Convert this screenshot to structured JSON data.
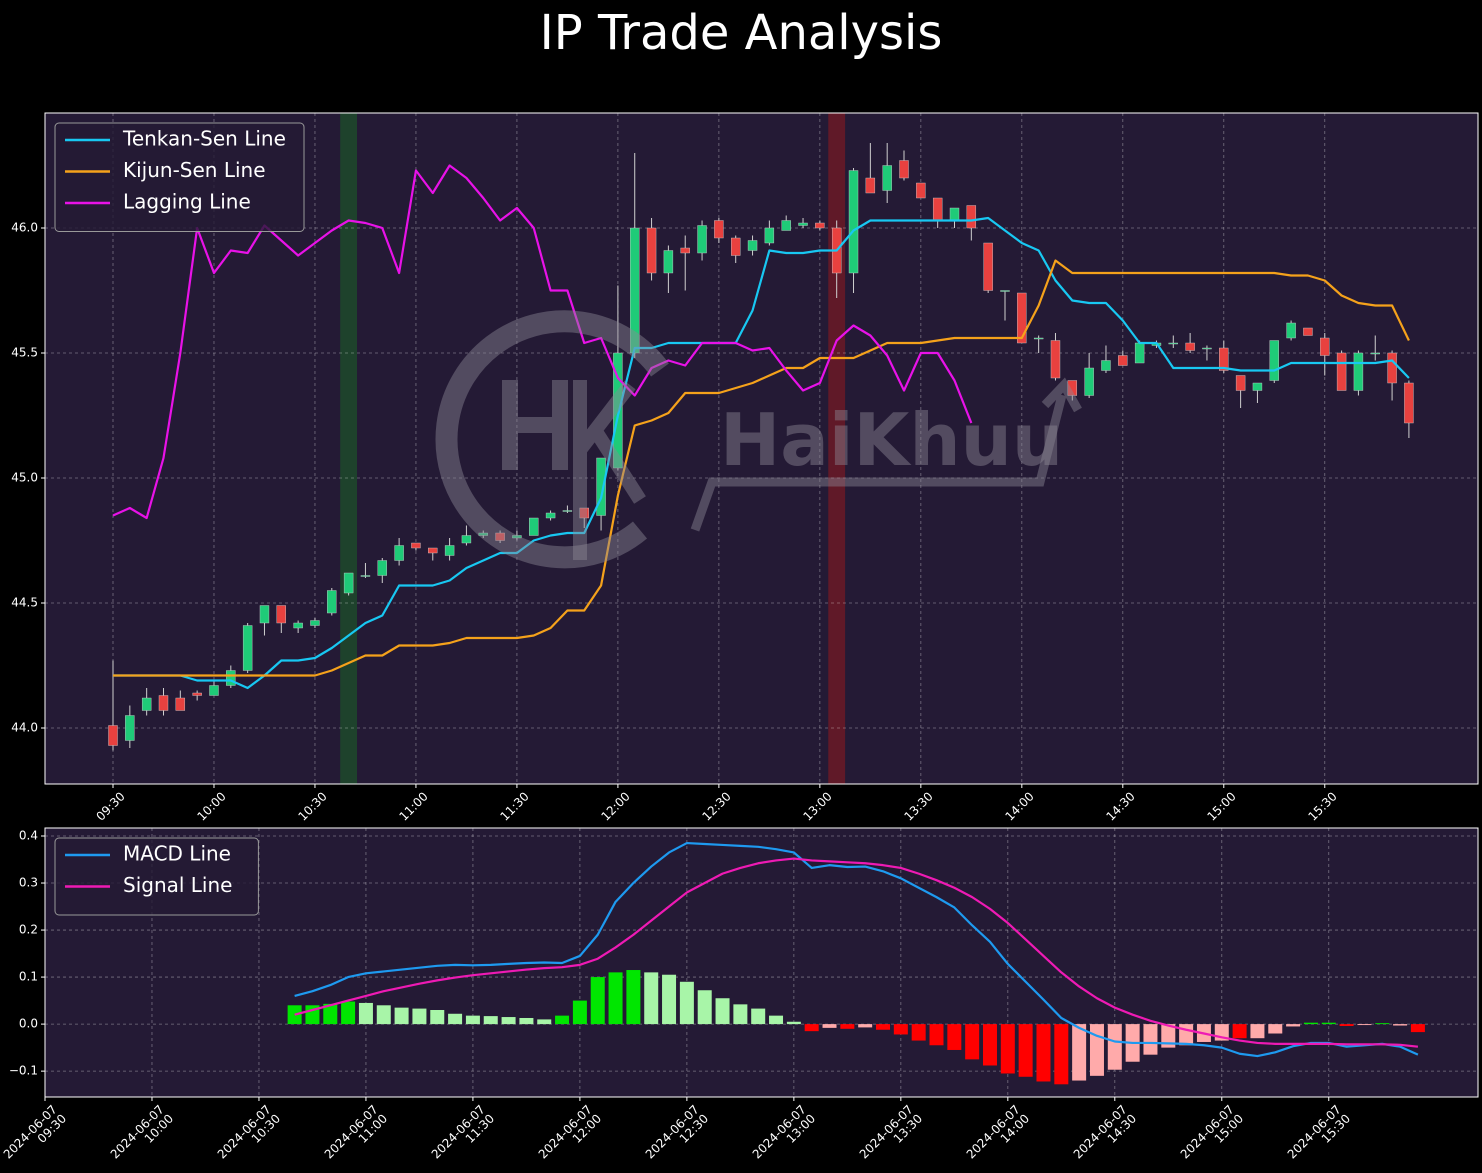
{
  "title": "IP Trade Analysis",
  "watermark": "HaiKhuu",
  "chart_data": [
    {
      "type": "candlestick",
      "categories": [
        "09:30",
        null,
        null,
        null,
        null,
        null,
        "10:00",
        null,
        null,
        null,
        null,
        null,
        "10:30",
        null,
        null,
        null,
        null,
        null,
        "11:00",
        null,
        null,
        null,
        null,
        null,
        "11:30",
        null,
        null,
        null,
        null,
        null,
        "12:00",
        null,
        null,
        null,
        null,
        null,
        "12:30",
        null,
        null,
        null,
        null,
        null,
        "13:00",
        null,
        null,
        null,
        null,
        null,
        "13:30",
        null,
        null,
        null,
        null,
        null,
        "14:00",
        null,
        null,
        null,
        null,
        null,
        "14:30",
        null,
        null,
        null,
        null,
        null,
        "15:00",
        null,
        null,
        null,
        null,
        null,
        "15:30",
        null,
        null,
        null,
        null,
        null
      ],
      "open": [
        44.01,
        43.95,
        44.07,
        44.13,
        44.12,
        44.14,
        44.13,
        44.17,
        44.23,
        44.42,
        44.49,
        44.4,
        44.41,
        44.46,
        44.54,
        44.61,
        44.61,
        44.67,
        44.74,
        44.72,
        44.69,
        44.74,
        44.77,
        44.78,
        44.76,
        44.77,
        44.84,
        44.87,
        44.88,
        44.85,
        45.04,
        45.5,
        46.0,
        45.82,
        45.92,
        45.9,
        46.03,
        45.96,
        45.91,
        45.94,
        45.99,
        46.01,
        46.02,
        46.0,
        45.82,
        46.2,
        46.15,
        46.27,
        46.18,
        46.12,
        46.03,
        46.09,
        45.94,
        45.75,
        45.74,
        45.56,
        45.55,
        45.39,
        45.33,
        45.43,
        45.49,
        45.46,
        45.53,
        45.54,
        45.54,
        45.52,
        45.52,
        45.41,
        45.35,
        45.39,
        45.56,
        45.6,
        45.56,
        45.5,
        45.35,
        45.5,
        45.5,
        45.38
      ],
      "high": [
        44.27,
        44.09,
        44.16,
        44.16,
        44.15,
        44.15,
        44.19,
        44.25,
        44.42,
        44.49,
        44.49,
        44.43,
        44.44,
        44.56,
        44.62,
        44.66,
        44.68,
        44.76,
        44.74,
        44.72,
        44.76,
        44.81,
        44.79,
        44.79,
        44.79,
        44.84,
        44.87,
        44.89,
        44.88,
        45.08,
        45.77,
        46.3,
        46.04,
        45.93,
        45.97,
        46.03,
        46.04,
        45.97,
        45.97,
        46.03,
        46.05,
        46.04,
        46.03,
        46.03,
        46.24,
        46.34,
        46.34,
        46.31,
        46.18,
        46.12,
        46.08,
        46.09,
        45.94,
        45.75,
        45.74,
        45.57,
        45.58,
        45.39,
        45.5,
        45.53,
        45.51,
        45.55,
        45.55,
        45.57,
        45.58,
        45.53,
        45.55,
        45.41,
        45.38,
        45.55,
        45.63,
        45.6,
        45.58,
        45.51,
        45.51,
        45.57,
        45.51,
        45.39
      ],
      "low": [
        43.91,
        43.92,
        44.05,
        44.05,
        44.07,
        44.11,
        44.13,
        44.16,
        44.22,
        44.37,
        44.38,
        44.38,
        44.4,
        44.45,
        44.53,
        44.6,
        44.58,
        44.65,
        44.71,
        44.67,
        44.67,
        44.73,
        44.76,
        44.74,
        44.75,
        44.77,
        44.83,
        44.86,
        44.8,
        44.79,
        45.03,
        45.48,
        45.79,
        45.74,
        45.75,
        45.87,
        45.94,
        45.86,
        45.89,
        45.93,
        45.99,
        46.0,
        45.99,
        45.72,
        45.74,
        46.14,
        46.1,
        46.19,
        46.12,
        46.0,
        46.0,
        45.95,
        45.74,
        45.63,
        45.54,
        45.5,
        45.39,
        45.31,
        45.32,
        45.42,
        45.45,
        45.46,
        45.52,
        45.52,
        45.5,
        45.47,
        45.42,
        45.28,
        45.3,
        45.38,
        45.55,
        45.57,
        45.41,
        45.35,
        45.33,
        45.47,
        45.31,
        45.16
      ],
      "close": [
        43.93,
        44.05,
        44.12,
        44.07,
        44.07,
        44.13,
        44.17,
        44.23,
        44.41,
        44.49,
        44.42,
        44.42,
        44.43,
        44.55,
        44.62,
        44.61,
        44.67,
        44.73,
        44.72,
        44.7,
        44.73,
        44.77,
        44.78,
        44.75,
        44.77,
        44.84,
        44.86,
        44.87,
        44.84,
        45.08,
        45.5,
        46.0,
        45.82,
        45.91,
        45.9,
        46.01,
        45.96,
        45.89,
        45.95,
        46.0,
        46.03,
        46.02,
        46.0,
        45.82,
        46.23,
        46.14,
        46.25,
        46.2,
        46.12,
        46.03,
        46.08,
        46.0,
        45.75,
        45.75,
        45.54,
        45.56,
        45.4,
        45.33,
        45.44,
        45.47,
        45.45,
        45.54,
        45.54,
        45.54,
        45.51,
        45.52,
        45.43,
        45.35,
        45.38,
        45.55,
        45.62,
        45.57,
        45.49,
        45.35,
        45.5,
        45.5,
        45.38,
        45.22
      ],
      "up_color": "#1fcb78",
      "down_color": "#e8413f",
      "wick_color": "#d0d0d0",
      "series": [
        {
          "name": "Tenkan-Sen Line",
          "color": "#18c8f2",
          "values": [
            44.21,
            44.21,
            44.21,
            44.21,
            44.21,
            44.19,
            44.19,
            44.19,
            44.16,
            44.21,
            44.27,
            44.27,
            44.28,
            44.32,
            44.37,
            44.42,
            44.45,
            44.57,
            44.57,
            44.57,
            44.59,
            44.64,
            44.67,
            44.7,
            44.7,
            44.75,
            44.77,
            44.78,
            44.78,
            44.92,
            45.25,
            45.52,
            45.52,
            45.54,
            45.54,
            45.54,
            45.54,
            45.54,
            45.67,
            45.91,
            45.9,
            45.9,
            45.91,
            45.91,
            45.99,
            46.03,
            46.03,
            46.03,
            46.03,
            46.03,
            46.03,
            46.03,
            46.04,
            45.99,
            45.94,
            45.91,
            45.79,
            45.71,
            45.7,
            45.7,
            45.63,
            45.54,
            45.54,
            45.44,
            45.44,
            45.44,
            45.44,
            45.43,
            45.43,
            45.43,
            45.46,
            45.46,
            45.46,
            45.46,
            45.46,
            45.46,
            45.47,
            45.4
          ]
        },
        {
          "name": "Kijun-Sen Line",
          "color": "#f5a21b",
          "values": [
            44.21,
            44.21,
            44.21,
            44.21,
            44.21,
            44.21,
            44.21,
            44.21,
            44.21,
            44.21,
            44.21,
            44.21,
            44.21,
            44.23,
            44.26,
            44.29,
            44.29,
            44.33,
            44.33,
            44.33,
            44.34,
            44.36,
            44.36,
            44.36,
            44.36,
            44.37,
            44.4,
            44.47,
            44.47,
            44.57,
            44.93,
            45.21,
            45.23,
            45.26,
            45.34,
            45.34,
            45.34,
            45.36,
            45.38,
            45.41,
            45.44,
            45.44,
            45.48,
            45.48,
            45.48,
            45.51,
            45.54,
            45.54,
            45.54,
            45.55,
            45.56,
            45.56,
            45.56,
            45.56,
            45.56,
            45.69,
            45.87,
            45.82,
            45.82,
            45.82,
            45.82,
            45.82,
            45.82,
            45.82,
            45.82,
            45.82,
            45.82,
            45.82,
            45.82,
            45.82,
            45.81,
            45.81,
            45.79,
            45.73,
            45.7,
            45.69,
            45.69,
            45.55
          ]
        },
        {
          "name": "Lagging Line",
          "color": "#e812e8",
          "values": [
            44.85,
            44.88,
            44.84,
            45.08,
            45.5,
            46.0,
            45.82,
            45.91,
            45.9,
            46.01,
            45.95,
            45.89,
            45.94,
            45.99,
            46.03,
            46.02,
            46.0,
            45.82,
            46.23,
            46.14,
            46.25,
            46.2,
            46.12,
            46.03,
            46.08,
            46.0,
            45.75,
            45.75,
            45.54,
            45.56,
            45.4,
            45.33,
            45.44,
            45.47,
            45.45,
            45.54,
            45.54,
            45.54,
            45.51,
            45.52,
            45.43,
            45.35,
            45.38,
            45.55,
            45.61,
            45.57,
            45.49,
            45.35,
            45.5,
            45.5,
            45.39,
            45.22,
            null,
            null,
            null,
            null,
            null,
            null,
            null,
            null,
            null,
            null,
            null,
            null,
            null,
            null,
            null,
            null,
            null,
            null,
            null,
            null,
            null,
            null,
            null,
            null,
            null,
            null
          ]
        }
      ],
      "highlights": [
        {
          "x": 14,
          "color": "#1d4a2a"
        },
        {
          "x": 43,
          "color": "#6b1a26"
        }
      ],
      "ylim": [
        43.776,
        46.46
      ],
      "yticks": [
        {
          "value": 44.0,
          "label": "44.0"
        },
        {
          "value": 44.5,
          "label": "44.5"
        },
        {
          "value": 45.0,
          "label": "45.0"
        },
        {
          "value": 45.5,
          "label": "45.5"
        },
        {
          "value": 46.0,
          "label": "46.0"
        }
      ],
      "grid": true,
      "legend": "upper left"
    },
    {
      "type": "macd",
      "categories": [
        "2024-06-07\n09:30",
        null,
        null,
        null,
        null,
        null,
        "2024-06-07\n10:00",
        null,
        null,
        null,
        null,
        null,
        "2024-06-07\n10:30",
        null,
        null,
        null,
        null,
        null,
        "2024-06-07\n11:00",
        null,
        null,
        null,
        null,
        null,
        "2024-06-07\n11:30",
        null,
        null,
        null,
        null,
        null,
        "2024-06-07\n12:00",
        null,
        null,
        null,
        null,
        null,
        "2024-06-07\n12:30",
        null,
        null,
        null,
        null,
        null,
        "2024-06-07\n13:00",
        null,
        null,
        null,
        null,
        null,
        "2024-06-07\n13:30",
        null,
        null,
        null,
        null,
        null,
        "2024-06-07\n14:00",
        null,
        null,
        null,
        null,
        null,
        "2024-06-07\n14:30",
        null,
        null,
        null,
        null,
        null,
        "2024-06-07\n15:00",
        null,
        null,
        null,
        null,
        null,
        "2024-06-07\n15:30",
        null,
        null,
        null,
        null,
        null
      ],
      "series": [
        {
          "name": "MACD Line",
          "color": "#1e9af0",
          "values": [
            null,
            null,
            null,
            null,
            null,
            null,
            null,
            null,
            null,
            null,
            null,
            null,
            null,
            null,
            0.06,
            0.07,
            0.083,
            0.1,
            0.108,
            0.112,
            0.116,
            0.12,
            0.124,
            0.126,
            0.125,
            0.126,
            0.128,
            0.13,
            0.131,
            0.13,
            0.145,
            0.19,
            0.26,
            0.3,
            0.335,
            0.365,
            0.385,
            0.383,
            0.381,
            0.379,
            0.377,
            0.372,
            0.365,
            0.332,
            0.338,
            0.334,
            0.335,
            0.325,
            0.31,
            0.29,
            0.27,
            0.248,
            0.21,
            0.175,
            0.128,
            0.09,
            0.052,
            0.013,
            -0.008,
            -0.025,
            -0.037,
            -0.04,
            -0.04,
            -0.041,
            -0.042,
            -0.045,
            -0.05,
            -0.063,
            -0.068,
            -0.06,
            -0.047,
            -0.04,
            -0.04,
            -0.048,
            -0.045,
            -0.042,
            -0.048,
            -0.065
          ]
        },
        {
          "name": "Signal Line",
          "color": "#ee1ab4",
          "values": [
            null,
            null,
            null,
            null,
            null,
            null,
            null,
            null,
            null,
            null,
            null,
            null,
            null,
            null,
            0.02,
            0.03,
            0.04,
            0.05,
            0.06,
            0.07,
            0.078,
            0.086,
            0.093,
            0.099,
            0.104,
            0.108,
            0.112,
            0.116,
            0.119,
            0.121,
            0.126,
            0.139,
            0.163,
            0.19,
            0.22,
            0.25,
            0.28,
            0.3,
            0.32,
            0.332,
            0.342,
            0.348,
            0.352,
            0.348,
            0.346,
            0.344,
            0.342,
            0.338,
            0.332,
            0.32,
            0.306,
            0.29,
            0.27,
            0.245,
            0.215,
            0.18,
            0.145,
            0.11,
            0.08,
            0.055,
            0.035,
            0.02,
            0.007,
            -0.003,
            -0.012,
            -0.02,
            -0.028,
            -0.035,
            -0.04,
            -0.042,
            -0.042,
            -0.042,
            -0.042,
            -0.043,
            -0.043,
            -0.043,
            -0.044,
            -0.048
          ]
        }
      ],
      "histogram": {
        "values": [
          null,
          null,
          null,
          null,
          null,
          null,
          null,
          null,
          null,
          null,
          null,
          null,
          null,
          null,
          0.04,
          0.04,
          0.043,
          0.048,
          0.045,
          0.04,
          0.035,
          0.033,
          0.03,
          0.022,
          0.018,
          0.017,
          0.015,
          0.013,
          0.01,
          0.018,
          0.05,
          0.1,
          0.11,
          0.115,
          0.11,
          0.105,
          0.09,
          0.072,
          0.055,
          0.042,
          0.033,
          0.018,
          0.005,
          -0.015,
          -0.008,
          -0.01,
          -0.007,
          -0.012,
          -0.022,
          -0.035,
          -0.045,
          -0.055,
          -0.075,
          -0.088,
          -0.105,
          -0.112,
          -0.122,
          -0.128,
          -0.12,
          -0.11,
          -0.097,
          -0.08,
          -0.065,
          -0.05,
          -0.045,
          -0.038,
          -0.035,
          -0.03,
          -0.03,
          -0.02,
          -0.005,
          0.003,
          0.003,
          -0.004,
          -0.002,
          0.002,
          -0.003,
          -0.017
        ],
        "colors": [
          null,
          null,
          null,
          null,
          null,
          null,
          null,
          null,
          null,
          null,
          null,
          null,
          null,
          null,
          "#00e600",
          "#00e600",
          "#00e600",
          "#00e600",
          "#a8f5a8",
          "#a8f5a8",
          "#a8f5a8",
          "#a8f5a8",
          "#a8f5a8",
          "#a8f5a8",
          "#a8f5a8",
          "#a8f5a8",
          "#a8f5a8",
          "#a8f5a8",
          "#a8f5a8",
          "#00e600",
          "#00e600",
          "#00e600",
          "#00e600",
          "#00e600",
          "#a8f5a8",
          "#a8f5a8",
          "#a8f5a8",
          "#a8f5a8",
          "#a8f5a8",
          "#a8f5a8",
          "#a8f5a8",
          "#a8f5a8",
          "#a8f5a8",
          "#ff0000",
          "#ffaaaa",
          "#ff0000",
          "#ffaaaa",
          "#ff0000",
          "#ff0000",
          "#ff0000",
          "#ff0000",
          "#ff0000",
          "#ff0000",
          "#ff0000",
          "#ff0000",
          "#ff0000",
          "#ff0000",
          "#ff0000",
          "#ffaaaa",
          "#ffaaaa",
          "#ffaaaa",
          "#ffaaaa",
          "#ffaaaa",
          "#ffaaaa",
          "#ffaaaa",
          "#ffaaaa",
          "#ffaaaa",
          "#ff0000",
          "#ffaaaa",
          "#ffaaaa",
          "#ffaaaa",
          "#00e600",
          "#00e600",
          "#ff0000",
          "#ffaaaa",
          "#00e600",
          "#ffaaaa",
          "#ff0000"
        ]
      },
      "ylim": [
        -0.155,
        0.417
      ],
      "yticks": [
        {
          "value": -0.1,
          "label": "−0.1"
        },
        {
          "value": 0.0,
          "label": "0.0"
        },
        {
          "value": 0.1,
          "label": "0.1"
        },
        {
          "value": 0.2,
          "label": "0.2"
        },
        {
          "value": 0.3,
          "label": "0.3"
        },
        {
          "value": 0.4,
          "label": "0.4"
        }
      ],
      "grid": true,
      "legend": "upper left"
    }
  ]
}
